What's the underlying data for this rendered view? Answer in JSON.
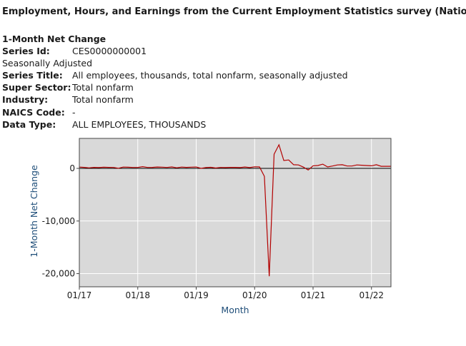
{
  "header": {
    "title": "Employment, Hours, and Earnings from the Current Employment Statistics survey (National)"
  },
  "series_info": {
    "section_title": "1-Month Net Change",
    "series_id_label": "Series Id:",
    "series_id": "CES0000000001",
    "adjustment": "Seasonally Adjusted",
    "series_title_label": "Series Title:",
    "series_title": "All employees, thousands, total nonfarm, seasonally adjusted",
    "super_sector_label": "Super Sector:",
    "super_sector": "Total nonfarm",
    "industry_label": "Industry:",
    "industry": "Total nonfarm",
    "naics_label": "NAICS Code:",
    "naics": "-",
    "data_type_label": "Data Type:",
    "data_type": "ALL EMPLOYEES, THOUSANDS"
  },
  "colors": {
    "plot_background": "#d9d9d9",
    "series_line": "#b30000",
    "zero_line": "#000000",
    "axis_label": "#1f4e79",
    "gridline": "#ffffff"
  },
  "chart_data": {
    "type": "line",
    "title": "",
    "xlabel": "Month",
    "ylabel": "1-Month Net Change",
    "grid": true,
    "xlim": [
      "2017-01",
      "2022-05"
    ],
    "ylim": [
      -22500,
      5700
    ],
    "x_ticks": [
      "01/17",
      "01/18",
      "01/19",
      "01/20",
      "01/21",
      "01/22"
    ],
    "y_ticks": [
      0,
      -10000,
      -20000
    ],
    "y_tick_labels": [
      "0",
      "-10,000",
      "-20,000"
    ],
    "series": [
      {
        "x": [
          "2017-01",
          "2017-02",
          "2017-03",
          "2017-04",
          "2017-05",
          "2017-06",
          "2017-07",
          "2017-08",
          "2017-09",
          "2017-10",
          "2017-11",
          "2017-12",
          "2018-01",
          "2018-02",
          "2018-03",
          "2018-04",
          "2018-05",
          "2018-06",
          "2018-07",
          "2018-08",
          "2018-09",
          "2018-10",
          "2018-11",
          "2018-12",
          "2019-01",
          "2019-02",
          "2019-03",
          "2019-04",
          "2019-05",
          "2019-06",
          "2019-07",
          "2019-08",
          "2019-09",
          "2019-10",
          "2019-11",
          "2019-12",
          "2020-01",
          "2020-02",
          "2020-03",
          "2020-04",
          "2020-05",
          "2020-06",
          "2020-07",
          "2020-08",
          "2020-09",
          "2020-10",
          "2020-11",
          "2020-12",
          "2021-01",
          "2021-02",
          "2021-03",
          "2021-04",
          "2021-05",
          "2021-06",
          "2021-07",
          "2021-08",
          "2021-09",
          "2021-10",
          "2021-11",
          "2021-12",
          "2022-01",
          "2022-02",
          "2022-03",
          "2022-04",
          "2022-05"
        ],
        "values": [
          250,
          200,
          100,
          200,
          150,
          220,
          190,
          180,
          20,
          250,
          220,
          180,
          180,
          330,
          180,
          200,
          270,
          240,
          180,
          280,
          110,
          250,
          200,
          230,
          260,
          10,
          150,
          210,
          80,
          180,
          160,
          190,
          190,
          150,
          260,
          150,
          300,
          280,
          -1500,
          -20500,
          2700,
          4500,
          1500,
          1600,
          700,
          650,
          250,
          -300,
          500,
          550,
          800,
          280,
          450,
          650,
          700,
          450,
          450,
          650,
          600,
          550,
          500,
          700,
          400,
          400,
          400
        ]
      }
    ]
  }
}
